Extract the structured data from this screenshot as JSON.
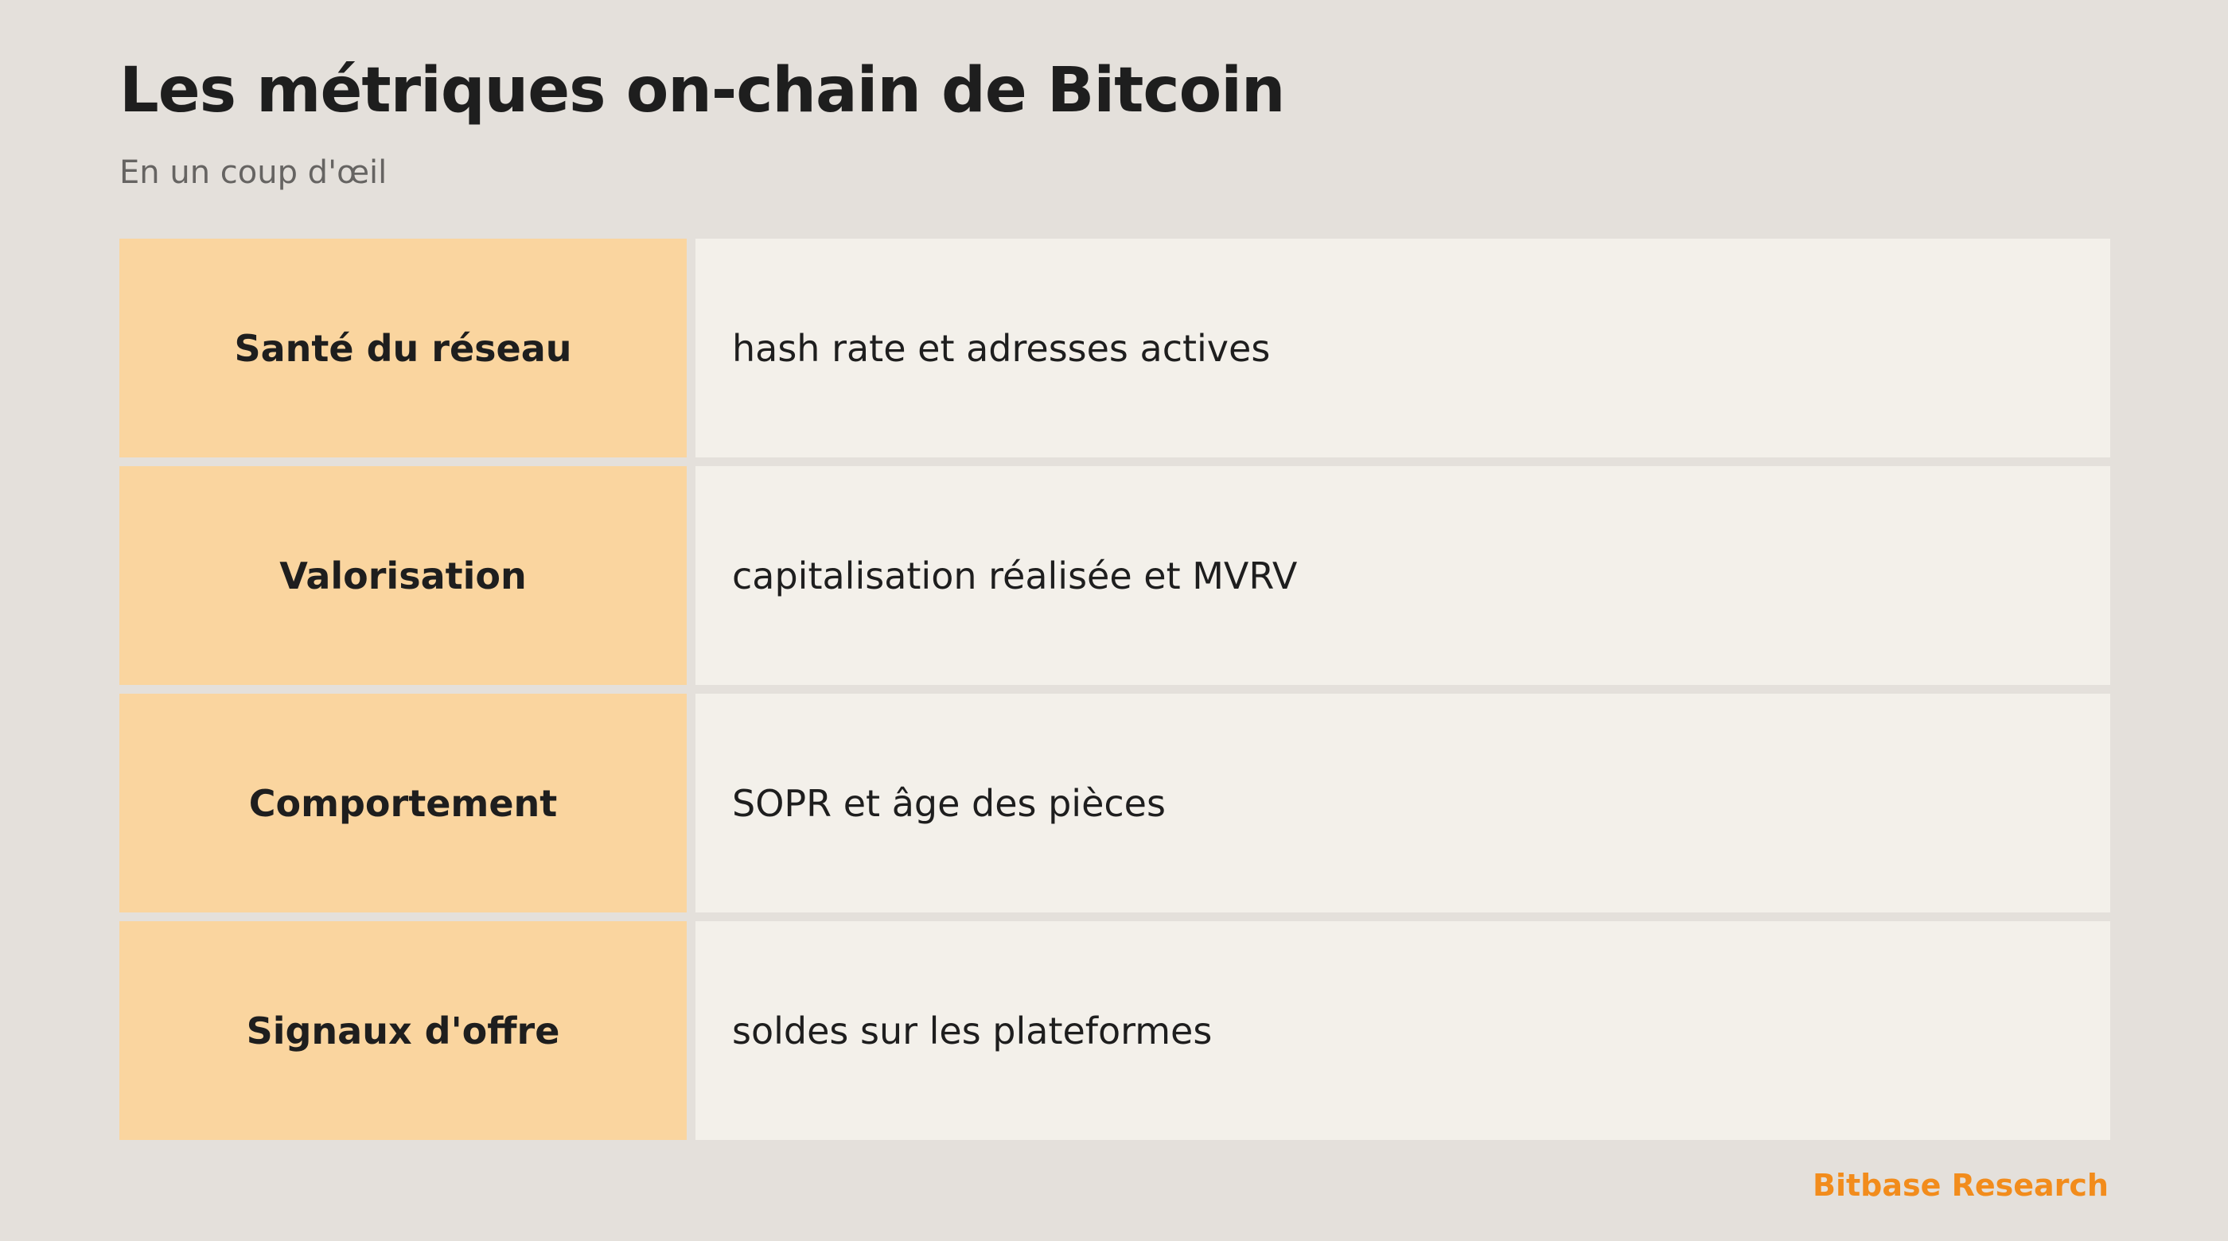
{
  "header": {
    "title": "Les métriques on-chain de Bitcoin",
    "subtitle": "En un coup d'œil"
  },
  "table": {
    "rows": [
      {
        "label": "Santé du réseau",
        "description": "hash rate et adresses actives"
      },
      {
        "label": "Valorisation",
        "description": "capitalisation réalisée et MVRV"
      },
      {
        "label": "Comportement",
        "description": "SOPR et âge des pièces"
      },
      {
        "label": "Signaux d'offre",
        "description": "soldes sur les plateformes"
      }
    ]
  },
  "footer": {
    "brand": "Bitbase Research"
  },
  "colors": {
    "background": "#e4e0db",
    "label_cell": "#fad59f",
    "description_cell": "#f3f0ea",
    "brand": "#f28c1c"
  }
}
